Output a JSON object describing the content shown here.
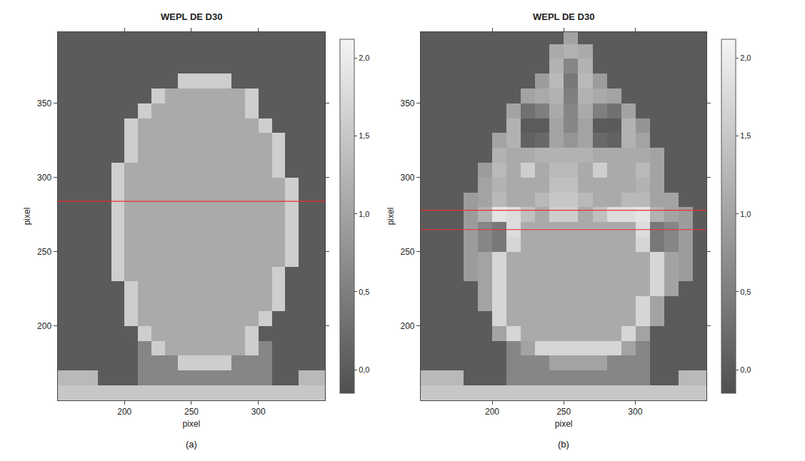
{
  "chart_data": [
    {
      "type": "heatmap",
      "title": "WEPL DE D30",
      "x_label": "pixel",
      "y_label": "pixel",
      "caption": "(a)",
      "x": [
        155,
        165,
        175,
        185,
        195,
        205,
        215,
        225,
        235,
        245,
        255,
        265,
        275,
        285,
        295,
        305,
        315,
        325,
        335,
        345
      ],
      "y": [
        155,
        165,
        175,
        185,
        195,
        205,
        215,
        225,
        235,
        245,
        255,
        265,
        275,
        285,
        295,
        305,
        315,
        325,
        335,
        345,
        355,
        365,
        375,
        385,
        395
      ],
      "cells": [
        [
          1.5,
          1.5,
          1.5,
          1.5,
          1.5,
          1.5,
          1.5,
          1.5,
          1.5,
          1.5,
          1.5,
          1.5,
          1.5,
          1.5,
          1.5,
          1.5,
          1.5,
          1.5,
          1.5,
          1.5
        ],
        [
          1.3,
          1.3,
          1.3,
          0,
          0,
          0,
          0.6,
          0.6,
          0.6,
          0.6,
          0.6,
          0.6,
          0.6,
          0.6,
          0.6,
          0.6,
          0,
          0,
          1.3,
          1.3
        ],
        [
          0,
          0,
          0,
          0,
          0,
          0,
          0.6,
          0.6,
          0.6,
          1.6,
          1.6,
          1.6,
          1.6,
          0.6,
          0.6,
          0.6,
          0,
          0,
          0,
          0
        ],
        [
          0,
          0,
          0,
          0,
          0,
          0,
          0.6,
          1.6,
          1.1,
          1.1,
          1.1,
          1.1,
          1.1,
          1.1,
          1.6,
          0.6,
          0,
          0,
          0,
          0
        ],
        [
          0,
          0,
          0,
          0,
          0,
          0,
          1.6,
          1.1,
          1.1,
          1.1,
          1.1,
          1.1,
          1.1,
          1.1,
          1.6,
          0,
          0,
          0,
          0,
          0
        ],
        [
          0,
          0,
          0,
          0,
          0,
          1.6,
          1.1,
          1.1,
          1.1,
          1.1,
          1.1,
          1.1,
          1.1,
          1.1,
          1.1,
          1.6,
          0,
          0,
          0,
          0
        ],
        [
          0,
          0,
          0,
          0,
          0,
          1.6,
          1.1,
          1.1,
          1.1,
          1.1,
          1.1,
          1.1,
          1.1,
          1.1,
          1.1,
          1.1,
          1.6,
          0,
          0,
          0
        ],
        [
          0,
          0,
          0,
          0,
          0,
          1.6,
          1.1,
          1.1,
          1.1,
          1.1,
          1.1,
          1.1,
          1.1,
          1.1,
          1.1,
          1.1,
          1.6,
          0,
          0,
          0
        ],
        [
          0,
          0,
          0,
          0,
          1.6,
          1.1,
          1.1,
          1.1,
          1.1,
          1.1,
          1.1,
          1.1,
          1.1,
          1.1,
          1.1,
          1.1,
          1.6,
          0,
          0,
          0
        ],
        [
          0,
          0,
          0,
          0,
          1.6,
          1.1,
          1.1,
          1.1,
          1.1,
          1.1,
          1.1,
          1.1,
          1.1,
          1.1,
          1.1,
          1.1,
          1.1,
          1.6,
          0,
          0
        ],
        [
          0,
          0,
          0,
          0,
          1.6,
          1.1,
          1.1,
          1.1,
          1.1,
          1.1,
          1.1,
          1.1,
          1.1,
          1.1,
          1.1,
          1.1,
          1.1,
          1.6,
          0,
          0
        ],
        [
          0,
          0,
          0,
          0,
          1.6,
          1.1,
          1.1,
          1.1,
          1.1,
          1.1,
          1.1,
          1.1,
          1.1,
          1.1,
          1.1,
          1.1,
          1.1,
          1.6,
          0,
          0
        ],
        [
          0,
          0,
          0,
          0,
          1.6,
          1.1,
          1.1,
          1.1,
          1.1,
          1.1,
          1.1,
          1.1,
          1.1,
          1.1,
          1.1,
          1.1,
          1.1,
          1.6,
          0,
          0
        ],
        [
          0,
          0,
          0,
          0,
          1.6,
          1.1,
          1.1,
          1.1,
          1.1,
          1.1,
          1.1,
          1.1,
          1.1,
          1.1,
          1.1,
          1.1,
          1.1,
          1.6,
          0,
          0
        ],
        [
          0,
          0,
          0,
          0,
          1.6,
          1.1,
          1.1,
          1.1,
          1.1,
          1.1,
          1.1,
          1.1,
          1.1,
          1.1,
          1.1,
          1.1,
          1.1,
          1.6,
          0,
          0
        ],
        [
          0,
          0,
          0,
          0,
          1.6,
          1.1,
          1.1,
          1.1,
          1.1,
          1.1,
          1.1,
          1.1,
          1.1,
          1.1,
          1.1,
          1.1,
          1.6,
          0,
          0,
          0
        ],
        [
          0,
          0,
          0,
          0,
          0,
          1.6,
          1.1,
          1.1,
          1.1,
          1.1,
          1.1,
          1.1,
          1.1,
          1.1,
          1.1,
          1.1,
          1.6,
          0,
          0,
          0
        ],
        [
          0,
          0,
          0,
          0,
          0,
          1.6,
          1.1,
          1.1,
          1.1,
          1.1,
          1.1,
          1.1,
          1.1,
          1.1,
          1.1,
          1.1,
          1.6,
          0,
          0,
          0
        ],
        [
          0,
          0,
          0,
          0,
          0,
          1.6,
          1.1,
          1.1,
          1.1,
          1.1,
          1.1,
          1.1,
          1.1,
          1.1,
          1.1,
          1.6,
          0,
          0,
          0,
          0
        ],
        [
          0,
          0,
          0,
          0,
          0,
          0,
          1.6,
          1.1,
          1.1,
          1.1,
          1.1,
          1.1,
          1.1,
          1.1,
          1.6,
          0,
          0,
          0,
          0,
          0
        ],
        [
          0,
          0,
          0,
          0,
          0,
          0,
          0,
          1.6,
          1.1,
          1.1,
          1.1,
          1.1,
          1.1,
          1.1,
          1.6,
          0,
          0,
          0,
          0,
          0
        ],
        [
          0,
          0,
          0,
          0,
          0,
          0,
          0,
          0,
          0,
          1.6,
          1.6,
          1.6,
          1.6,
          0,
          0,
          0,
          0,
          0,
          0,
          0
        ],
        [
          0,
          0,
          0,
          0,
          0,
          0,
          0,
          0,
          0,
          0,
          0,
          0,
          0,
          0,
          0,
          0,
          0,
          0,
          0,
          0
        ],
        [
          0,
          0,
          0,
          0,
          0,
          0,
          0,
          0,
          0,
          0,
          0,
          0,
          0,
          0,
          0,
          0,
          0,
          0,
          0,
          0
        ],
        [
          0,
          0,
          0,
          0,
          0,
          0,
          0,
          0,
          0,
          0,
          0,
          0,
          0,
          0,
          0,
          0,
          0,
          0,
          0,
          0
        ]
      ],
      "xlim": [
        150,
        350
      ],
      "ylim": [
        150,
        398
      ],
      "xticks": [
        200,
        250,
        300
      ],
      "yticks": [
        200,
        250,
        300,
        350
      ],
      "colorbar_range": [
        -0.15,
        2.12
      ],
      "colorbar_ticks": [
        {
          "value": 0,
          "label": "0,0"
        },
        {
          "value": 0.5,
          "label": "0,5"
        },
        {
          "value": 1,
          "label": "1,0"
        },
        {
          "value": 1.5,
          "label": "1,5"
        },
        {
          "value": 2,
          "label": "2,0"
        }
      ],
      "hlines": [
        {
          "y": 284,
          "color": "#e8312f"
        }
      ],
      "grid": false
    },
    {
      "type": "heatmap",
      "title": "WEPL DE D30",
      "x_label": "pixel",
      "y_label": "pixel",
      "caption": "(b)",
      "x": [
        155,
        165,
        175,
        185,
        195,
        205,
        215,
        225,
        235,
        245,
        255,
        265,
        275,
        285,
        295,
        305,
        315,
        325,
        335,
        345
      ],
      "y": [
        155,
        165,
        175,
        185,
        195,
        205,
        215,
        225,
        235,
        245,
        255,
        265,
        275,
        285,
        295,
        305,
        315,
        325,
        335,
        345,
        355,
        365,
        375,
        385,
        395
      ],
      "cells": [
        [
          1.5,
          1.5,
          1.5,
          1.5,
          1.5,
          1.5,
          1.5,
          1.5,
          1.5,
          1.5,
          1.5,
          1.5,
          1.5,
          1.5,
          1.5,
          1.5,
          1.5,
          1.5,
          1.5,
          1.5
        ],
        [
          1.3,
          1.3,
          1.3,
          0,
          0,
          0,
          0.6,
          0.6,
          0.6,
          0.6,
          0.6,
          0.6,
          0.6,
          0.6,
          0.6,
          0.6,
          0,
          0,
          1.3,
          1.3
        ],
        [
          0,
          0,
          0,
          0,
          0,
          0,
          0.6,
          0.6,
          0.6,
          1.0,
          1.0,
          1.0,
          1.0,
          0.6,
          0.6,
          0.6,
          0,
          0,
          0,
          0
        ],
        [
          0,
          0,
          0,
          0,
          0,
          0,
          0.6,
          1.0,
          1.7,
          1.7,
          1.7,
          1.7,
          1.7,
          1.7,
          1.0,
          0.6,
          0,
          0,
          0,
          0
        ],
        [
          0,
          0,
          0,
          0,
          0,
          1.0,
          1.7,
          1.1,
          1.1,
          1.1,
          1.1,
          1.1,
          1.1,
          1.1,
          1.7,
          1.0,
          0,
          0,
          0,
          0
        ],
        [
          0,
          0,
          0,
          0,
          0,
          1.7,
          1.1,
          1.1,
          1.1,
          1.1,
          1.1,
          1.1,
          1.1,
          1.1,
          1.1,
          1.7,
          1.0,
          0,
          0,
          0
        ],
        [
          0,
          0,
          0,
          0,
          1.0,
          1.7,
          1.1,
          1.1,
          1.1,
          1.1,
          1.1,
          1.1,
          1.1,
          1.1,
          1.1,
          1.7,
          1.0,
          0,
          0,
          0
        ],
        [
          0,
          0,
          0,
          0,
          1.0,
          1.7,
          1.1,
          1.1,
          1.1,
          1.1,
          1.1,
          1.1,
          1.1,
          1.1,
          1.1,
          1.1,
          1.7,
          1.0,
          0,
          0
        ],
        [
          0,
          0,
          0,
          0.9,
          1.0,
          1.7,
          1.1,
          1.1,
          1.1,
          1.1,
          1.1,
          1.1,
          1.1,
          1.1,
          1.1,
          1.1,
          1.7,
          1.0,
          0.9,
          0
        ],
        [
          0,
          0,
          0,
          0.9,
          1.0,
          1.7,
          1.1,
          1.1,
          1.1,
          1.1,
          1.1,
          1.1,
          1.1,
          1.1,
          1.1,
          1.1,
          1.7,
          1.0,
          0.9,
          0
        ],
        [
          0,
          0,
          0,
          0.9,
          0.6,
          0.4,
          1.7,
          1.1,
          1.1,
          1.1,
          1.1,
          1.1,
          1.1,
          1.1,
          1.1,
          1.7,
          0.4,
          0.6,
          0.9,
          0
        ],
        [
          0,
          0,
          0,
          0.9,
          0.6,
          0.4,
          1.8,
          1.1,
          1.1,
          1.1,
          1.1,
          1.1,
          1.1,
          1.1,
          1.1,
          1.8,
          0.4,
          0.6,
          0.9,
          0
        ],
        [
          0,
          0,
          0,
          0.9,
          1.2,
          1.9,
          1.8,
          1.4,
          1.1,
          1.6,
          1.6,
          1.1,
          1.4,
          1.8,
          1.8,
          1.9,
          1.2,
          1.0,
          0.9,
          0
        ],
        [
          0,
          0,
          0,
          0.9,
          1.0,
          1.3,
          1.1,
          1.1,
          1.3,
          1.5,
          1.5,
          1.3,
          1.1,
          1.1,
          1.3,
          1.3,
          1.0,
          1.0,
          0,
          0
        ],
        [
          0,
          0,
          0,
          0,
          1.0,
          1.2,
          1.1,
          1.1,
          1.1,
          1.4,
          1.4,
          1.1,
          1.1,
          1.1,
          1.1,
          1.2,
          1.0,
          0,
          0,
          0
        ],
        [
          0,
          0,
          0,
          0,
          0.9,
          1.3,
          1.1,
          1.6,
          1.1,
          1.3,
          1.3,
          1.1,
          1.6,
          1.1,
          1.1,
          1.3,
          1.0,
          0,
          0,
          0
        ],
        [
          0,
          0,
          0,
          0,
          0,
          1.2,
          1.1,
          1.1,
          1.2,
          1.2,
          1.2,
          1.2,
          1.1,
          1.1,
          1.1,
          1.1,
          1.0,
          0,
          0,
          0
        ],
        [
          0,
          0,
          0,
          0,
          0,
          1.0,
          1.2,
          0.1,
          0.2,
          1.0,
          0.8,
          1.0,
          0.2,
          0.1,
          1.2,
          1.0,
          0,
          0,
          0,
          0
        ],
        [
          0,
          0,
          0,
          0,
          0,
          0,
          1.2,
          0,
          0,
          1.0,
          0.6,
          1.0,
          0,
          0,
          1.2,
          0.8,
          0,
          0,
          0,
          0
        ],
        [
          0,
          0,
          0,
          0,
          0,
          0,
          1.0,
          0.3,
          0.5,
          1.1,
          0.6,
          1.1,
          0.5,
          0.3,
          1.0,
          0,
          0,
          0,
          0,
          0
        ],
        [
          0,
          0,
          0,
          0,
          0,
          0,
          0,
          1.0,
          1.1,
          1.2,
          0.5,
          1.2,
          1.1,
          1.0,
          0,
          0,
          0,
          0,
          0,
          0
        ],
        [
          0,
          0,
          0,
          0,
          0,
          0,
          0,
          0,
          0.9,
          1.3,
          0.4,
          1.3,
          0.9,
          0,
          0,
          0,
          0,
          0,
          0,
          0
        ],
        [
          0,
          0,
          0,
          0,
          0,
          0,
          0,
          0,
          0,
          1.2,
          0.6,
          1.2,
          0,
          0,
          0,
          0,
          0,
          0,
          0,
          0
        ],
        [
          0,
          0,
          0,
          0,
          0,
          0,
          0,
          0,
          0,
          1.1,
          1.2,
          1.1,
          0,
          0,
          0,
          0,
          0,
          0,
          0,
          0
        ],
        [
          0,
          0,
          0,
          0,
          0,
          0,
          0,
          0,
          0,
          0,
          1.0,
          0,
          0,
          0,
          0,
          0,
          0,
          0,
          0,
          0
        ]
      ],
      "xlim": [
        150,
        350
      ],
      "ylim": [
        150,
        398
      ],
      "xticks": [
        200,
        250,
        300
      ],
      "yticks": [
        200,
        250,
        300,
        350
      ],
      "colorbar_range": [
        -0.15,
        2.12
      ],
      "colorbar_ticks": [
        {
          "value": 0,
          "label": "0,0"
        },
        {
          "value": 0.5,
          "label": "0,5"
        },
        {
          "value": 1,
          "label": "1,0"
        },
        {
          "value": 1.5,
          "label": "1,5"
        },
        {
          "value": 2,
          "label": "2,0"
        }
      ],
      "hlines": [
        {
          "y": 278,
          "color": "#e8312f"
        },
        {
          "y": 265,
          "color": "#e8312f"
        }
      ],
      "grid": false
    }
  ]
}
